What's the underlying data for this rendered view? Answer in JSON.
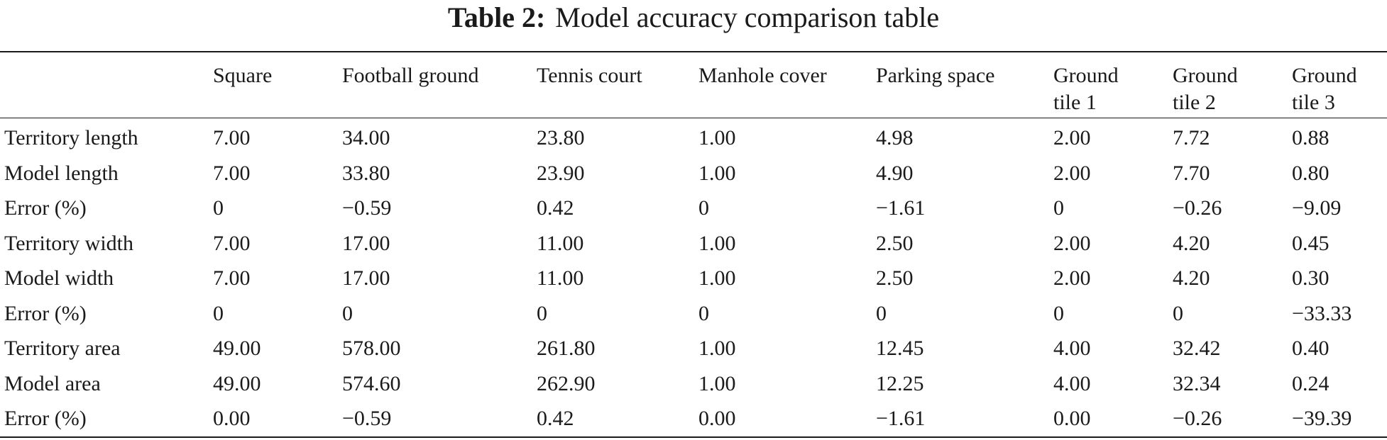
{
  "caption": {
    "label": "Table 2:",
    "title": "Model accuracy comparison table"
  },
  "table": {
    "columns": [
      {
        "line1": "Square",
        "line2": ""
      },
      {
        "line1": "Football ground",
        "line2": ""
      },
      {
        "line1": "Tennis court",
        "line2": ""
      },
      {
        "line1": "Manhole cover",
        "line2": ""
      },
      {
        "line1": "Parking space",
        "line2": ""
      },
      {
        "line1": "Ground",
        "line2": "tile 1"
      },
      {
        "line1": "Ground",
        "line2": "tile 2"
      },
      {
        "line1": "Ground",
        "line2": "tile 3"
      }
    ],
    "rows": [
      {
        "label": "Territory length",
        "cells": [
          "7.00",
          "34.00",
          "23.80",
          "1.00",
          "4.98",
          "2.00",
          "7.72",
          "0.88"
        ]
      },
      {
        "label": "Model length",
        "cells": [
          "7.00",
          "33.80",
          "23.90",
          "1.00",
          "4.90",
          "2.00",
          "7.70",
          "0.80"
        ]
      },
      {
        "label": "Error (%)",
        "cells": [
          "0",
          "−0.59",
          "0.42",
          "0",
          "−1.61",
          "0",
          "−0.26",
          "−9.09"
        ]
      },
      {
        "label": "Territory width",
        "cells": [
          "7.00",
          "17.00",
          "11.00",
          "1.00",
          "2.50",
          "2.00",
          "4.20",
          "0.45"
        ]
      },
      {
        "label": "Model width",
        "cells": [
          "7.00",
          "17.00",
          "11.00",
          "1.00",
          "2.50",
          "2.00",
          "4.20",
          "0.30"
        ]
      },
      {
        "label": "Error (%)",
        "cells": [
          "0",
          "0",
          "0",
          "0",
          "0",
          "0",
          "0",
          "−33.33"
        ]
      },
      {
        "label": "Territory area",
        "cells": [
          "49.00",
          "578.00",
          "261.80",
          "1.00",
          "12.45",
          "4.00",
          "32.42",
          "0.40"
        ]
      },
      {
        "label": "Model area",
        "cells": [
          "49.00",
          "574.60",
          "262.90",
          "1.00",
          "12.25",
          "4.00",
          "32.34",
          "0.24"
        ]
      },
      {
        "label": "Error (%)",
        "cells": [
          "0.00",
          "−0.59",
          "0.42",
          "0.00",
          "−1.61",
          "0.00",
          "−0.26",
          "−39.39"
        ]
      }
    ]
  }
}
